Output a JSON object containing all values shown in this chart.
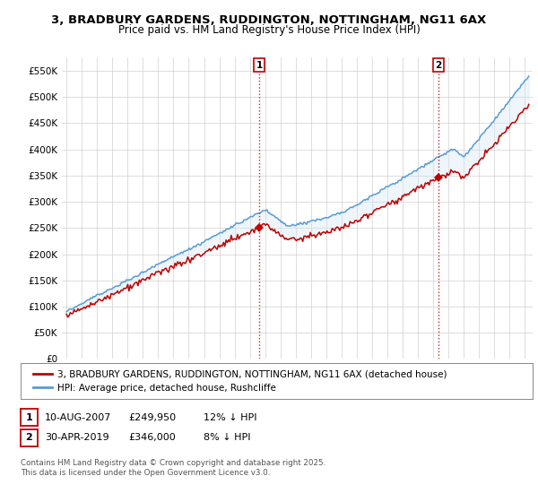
{
  "title": "3, BRADBURY GARDENS, RUDDINGTON, NOTTINGHAM, NG11 6AX",
  "subtitle": "Price paid vs. HM Land Registry's House Price Index (HPI)",
  "ylim": [
    0,
    575000
  ],
  "yticks": [
    0,
    50000,
    100000,
    150000,
    200000,
    250000,
    300000,
    350000,
    400000,
    450000,
    500000,
    550000
  ],
  "ytick_labels": [
    "£0",
    "£50K",
    "£100K",
    "£150K",
    "£200K",
    "£250K",
    "£300K",
    "£350K",
    "£400K",
    "£450K",
    "£500K",
    "£550K"
  ],
  "hpi_color": "#5b9bd5",
  "price_color": "#c00000",
  "fill_color": "#d0e8f8",
  "sale1_x": 2007.614,
  "sale2_x": 2019.33,
  "sale1_price": 249950,
  "sale2_price": 346000,
  "legend_line1": "3, BRADBURY GARDENS, RUDDINGTON, NOTTINGHAM, NG11 6AX (detached house)",
  "legend_line2": "HPI: Average price, detached house, Rushcliffe",
  "table_row1": [
    "1",
    "10-AUG-2007",
    "£249,950",
    "12% ↓ HPI"
  ],
  "table_row2": [
    "2",
    "30-APR-2019",
    "£346,000",
    "8% ↓ HPI"
  ],
  "footer": "Contains HM Land Registry data © Crown copyright and database right 2025.\nThis data is licensed under the Open Government Licence v3.0.",
  "title_fontsize": 9.5,
  "subtitle_fontsize": 8.5,
  "tick_fontsize": 7.5,
  "legend_fontsize": 7.5
}
